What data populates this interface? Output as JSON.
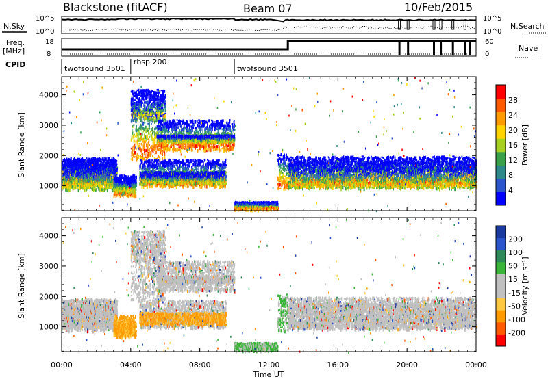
{
  "header": {
    "station": "Blackstone (fitACF)",
    "beam": "Beam 07",
    "date": "10/Feb/2015"
  },
  "panels": {
    "nsky_label": "N.Sky",
    "nsearch_label": "N.Search",
    "nsky_ticks": [
      "10^5",
      "10^0"
    ],
    "nsearch_ticks": [
      "10^5",
      "10^0"
    ],
    "freq_label": [
      "Freq.",
      "[MHz]"
    ],
    "freq_ticks": [
      "18",
      "8"
    ],
    "nave_label": "Nave",
    "nave_ticks": [
      "60",
      "0"
    ],
    "cpid_label": "CPID",
    "cpid_segments": [
      {
        "label": "twofsound 3501",
        "start_hour": 0.0
      },
      {
        "label": "rbsp 200",
        "start_hour": 4.0
      },
      {
        "label": "twofsound 3501",
        "start_hour": 10.0
      }
    ]
  },
  "colors": {
    "power": [
      "#0000ff",
      "#2a55cc",
      "#2e8a8a",
      "#3aa04a",
      "#a8d020",
      "#ffd400",
      "#ff9a00",
      "#ff5a00",
      "#ff0000"
    ],
    "velocity": [
      "#ff0000",
      "#ff5a00",
      "#ff9a00",
      "#ffc840",
      "#c0c0c0",
      "#c0c0c0",
      "#3ab53a",
      "#2e8a5a",
      "#2a55cc",
      "#1a3aa0"
    ]
  },
  "chart_data": [
    {
      "type": "heatmap",
      "title": "",
      "xlabel": "",
      "ylabel": "Slant Range [km]",
      "xlim": [
        0,
        24
      ],
      "ylim": [
        180,
        4600
      ],
      "xticks": [
        0,
        4,
        8,
        12,
        16,
        20,
        24
      ],
      "xticklabels": [
        "00:00",
        "04:00",
        "08:00",
        "12:00",
        "16:00",
        "20:00",
        "00:00"
      ],
      "yticks": [
        1000,
        2000,
        3000,
        4000
      ],
      "yticklabels": [
        "1000",
        "2000",
        "3000",
        "4000"
      ],
      "colorbar": {
        "label": "Power [dB]",
        "ticks": [
          "4",
          "8",
          "12",
          "16",
          "20",
          "24",
          "28"
        ],
        "range": [
          0,
          30
        ]
      },
      "scatter_bands": [
        {
          "start_hour": 0.0,
          "end_hour": 3.2,
          "range_km": [
            [
              1050,
              1950
            ],
            [
              1000,
              1900
            ],
            [
              900,
              1750
            ]
          ]
        },
        {
          "start_hour": 3.0,
          "end_hour": 4.3,
          "range_km": [
            [
              700,
              1200
            ],
            [
              800,
              1400
            ]
          ]
        },
        {
          "start_hour": 4.0,
          "end_hour": 6.0,
          "range_km": [
            [
              1900,
              3800
            ],
            [
              3200,
              4200
            ]
          ]
        },
        {
          "start_hour": 5.5,
          "end_hour": 10.0,
          "range_km": [
            [
              2200,
              3200
            ],
            [
              2500,
              2700
            ]
          ]
        },
        {
          "start_hour": 4.5,
          "end_hour": 9.5,
          "range_km": [
            [
              1000,
              1900
            ],
            [
              1100,
              1500
            ]
          ]
        },
        {
          "start_hour": 10.0,
          "end_hour": 12.5,
          "range_km": [
            [
              250,
              500
            ]
          ]
        },
        {
          "start_hour": 12.5,
          "end_hour": 13.1,
          "range_km": [
            [
              900,
              2100
            ]
          ]
        },
        {
          "start_hour": 13.1,
          "end_hour": 24.0,
          "range_km": [
            [
              1000,
              2000
            ],
            [
              950,
              1800
            ]
          ]
        }
      ]
    },
    {
      "type": "heatmap",
      "title": "",
      "xlabel": "Time UT",
      "ylabel": "Slant Range [km]",
      "xlim": [
        0,
        24
      ],
      "ylim": [
        180,
        4600
      ],
      "xticks": [
        0,
        4,
        8,
        12,
        16,
        20,
        24
      ],
      "xticklabels": [
        "00:00",
        "04:00",
        "08:00",
        "12:00",
        "16:00",
        "20:00",
        "00:00"
      ],
      "yticks": [
        1000,
        2000,
        3000,
        4000
      ],
      "yticklabels": [
        "1000",
        "2000",
        "3000",
        "4000"
      ],
      "colorbar": {
        "label": "Velocity [m s⁻¹]",
        "ticks": [
          "200",
          "100",
          "50",
          "15",
          "-15",
          "-50",
          "-100",
          "-200"
        ],
        "range": [
          -250,
          250
        ]
      },
      "scatter_bands": [
        {
          "start_hour": 0.0,
          "end_hour": 3.2,
          "range_km": [
            [
              1050,
              1950
            ],
            [
              1000,
              1900
            ],
            [
              900,
              1750
            ]
          ]
        },
        {
          "start_hour": 3.0,
          "end_hour": 4.3,
          "range_km": [
            [
              700,
              1200
            ],
            [
              800,
              1400
            ]
          ]
        },
        {
          "start_hour": 4.0,
          "end_hour": 6.0,
          "range_km": [
            [
              1900,
              3800
            ],
            [
              3200,
              4200
            ]
          ]
        },
        {
          "start_hour": 5.5,
          "end_hour": 10.0,
          "range_km": [
            [
              2200,
              3200
            ],
            [
              2500,
              2700
            ]
          ]
        },
        {
          "start_hour": 4.5,
          "end_hour": 9.5,
          "range_km": [
            [
              1000,
              1900
            ],
            [
              1100,
              1500
            ]
          ]
        },
        {
          "start_hour": 10.0,
          "end_hour": 12.5,
          "range_km": [
            [
              250,
              500
            ]
          ]
        },
        {
          "start_hour": 12.5,
          "end_hour": 13.1,
          "range_km": [
            [
              900,
              2100
            ]
          ]
        },
        {
          "start_hour": 13.1,
          "end_hour": 24.0,
          "range_km": [
            [
              1000,
              2000
            ],
            [
              950,
              1800
            ]
          ]
        }
      ]
    }
  ]
}
